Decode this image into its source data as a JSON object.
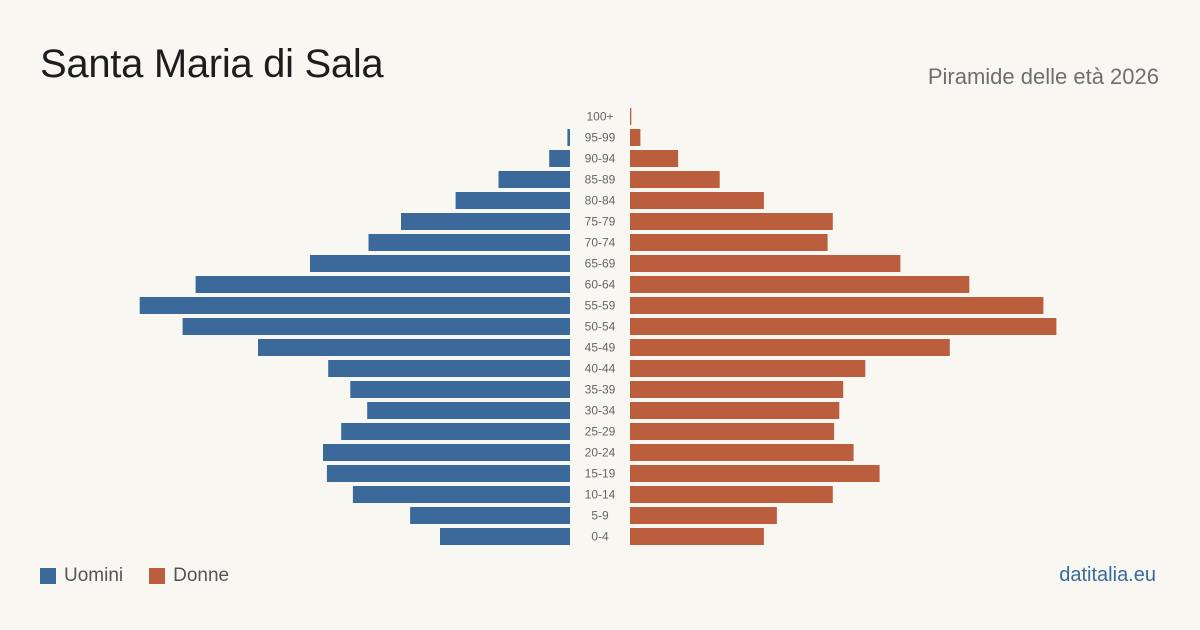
{
  "header": {
    "title": "Santa Maria di Sala",
    "subtitle": "Piramide delle età 2026"
  },
  "legend": {
    "men_label": "Uomini",
    "women_label": "Donne"
  },
  "brand": "datitalia.eu",
  "colors": {
    "men": "#3b6a9a",
    "women": "#bb5e3d",
    "background": "#f9f7f2"
  },
  "chart_data": {
    "type": "bar",
    "orientation": "horizontal-population-pyramid",
    "categories": [
      "100+",
      "95-99",
      "90-94",
      "85-89",
      "80-84",
      "75-79",
      "70-74",
      "65-69",
      "60-64",
      "55-59",
      "50-54",
      "45-49",
      "40-44",
      "35-39",
      "30-34",
      "25-29",
      "20-24",
      "15-19",
      "10-14",
      "5-9",
      "0-4"
    ],
    "series": [
      {
        "name": "Uomini",
        "values": [
          0,
          2,
          16,
          55,
          88,
          130,
          155,
          200,
          288,
          331,
          298,
          240,
          186,
          169,
          156,
          176,
          190,
          187,
          167,
          123,
          100
        ]
      },
      {
        "name": "Donne",
        "values": [
          1,
          8,
          37,
          69,
          103,
          156,
          152,
          208,
          261,
          318,
          328,
          246,
          181,
          164,
          161,
          157,
          172,
          192,
          156,
          113,
          103
        ]
      }
    ],
    "grid": false,
    "legend_position": "bottom-left"
  }
}
